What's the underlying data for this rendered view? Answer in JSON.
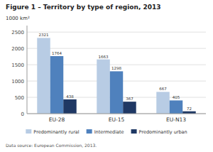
{
  "chart_data": {
    "type": "bar",
    "title": "Figure 1 – Territory by type of region, 2013",
    "ylabel": "1000 km²",
    "categories": [
      "EU-28",
      "EU-15",
      "EU-N13"
    ],
    "series": [
      {
        "name": "Predominantly rural",
        "color": "#b8cce4",
        "values": [
          2321,
          1663,
          667
        ]
      },
      {
        "name": "Intermediate",
        "color": "#4f81bd",
        "values": [
          1764,
          1298,
          405
        ]
      },
      {
        "name": "Predominantly urban",
        "color": "#1f3864",
        "values": [
          438,
          367,
          72
        ]
      }
    ],
    "ylim": [
      0,
      2700
    ],
    "yticks": [
      0,
      500,
      1000,
      1500,
      2000,
      2500
    ],
    "grid": true,
    "data_labels": true,
    "legend": "bottom",
    "annotations": [
      "Data source: European Commission, 2013."
    ]
  }
}
